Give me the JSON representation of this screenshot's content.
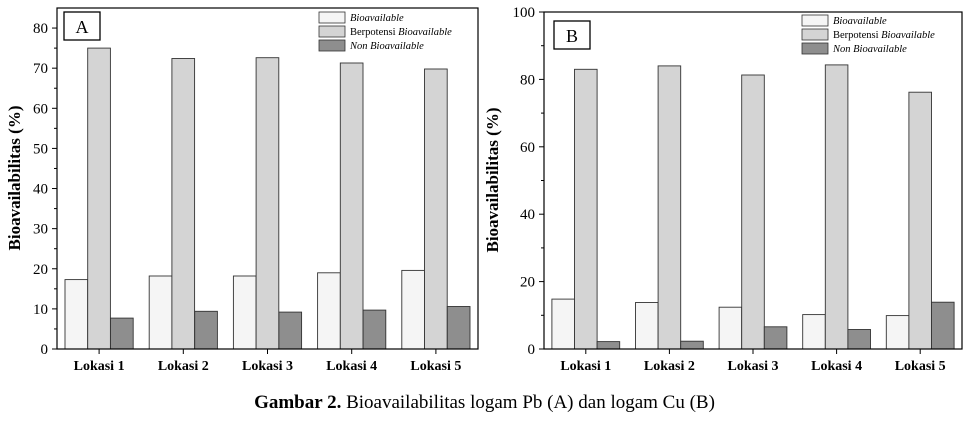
{
  "chart_data": [
    {
      "type": "bar",
      "panel_label": "A",
      "ylabel": "Bioavailabilitas (%)",
      "xlabel": "",
      "ylim": [
        0,
        85
      ],
      "yticks": [
        0,
        10,
        20,
        30,
        40,
        50,
        60,
        70,
        80
      ],
      "categories": [
        "Lokasi 1",
        "Lokasi 2",
        "Lokasi 3",
        "Lokasi 4",
        "Lokasi 5"
      ],
      "legend_position": "top-right",
      "series": [
        {
          "name": "Bioavailable",
          "name_style": "italic",
          "color": "#f5f5f5",
          "values": [
            17.3,
            18.2,
            18.2,
            19.0,
            19.6
          ]
        },
        {
          "name_prefix": "Berpotensi ",
          "name_suffix_italic": "Bioavailable",
          "color": "#d4d4d4",
          "values": [
            75.0,
            72.4,
            72.6,
            71.3,
            69.8
          ]
        },
        {
          "name": "Non Bioavailable",
          "name_style": "italic",
          "color": "#8e8e8e",
          "values": [
            7.7,
            9.4,
            9.2,
            9.7,
            10.6
          ]
        }
      ]
    },
    {
      "type": "bar",
      "panel_label": "B",
      "ylabel": "Bioavailabilitas (%)",
      "xlabel": "",
      "ylim": [
        0,
        100
      ],
      "yticks": [
        0,
        20,
        40,
        60,
        80,
        100
      ],
      "categories": [
        "Lokasi 1",
        "Lokasi 2",
        "Lokasi 3",
        "Lokasi 4",
        "Lokasi 5"
      ],
      "legend_position": "top-right",
      "series": [
        {
          "name": "Bioavailable",
          "name_style": "italic",
          "color": "#f5f5f5",
          "values": [
            14.8,
            13.8,
            12.4,
            10.2,
            9.9
          ]
        },
        {
          "name_prefix": "Berpotensi ",
          "name_suffix_italic": "Bioavailable",
          "color": "#d4d4d4",
          "values": [
            83.0,
            84.0,
            81.3,
            84.3,
            76.2
          ]
        },
        {
          "name": "Non Bioavailable",
          "name_style": "italic",
          "color": "#8e8e8e",
          "values": [
            2.2,
            2.3,
            6.6,
            5.8,
            13.9
          ]
        }
      ]
    }
  ],
  "caption": {
    "bold": "Gambar 2.",
    "text": " Bioavailabilitas logam Pb (A) dan logam Cu (B)"
  }
}
